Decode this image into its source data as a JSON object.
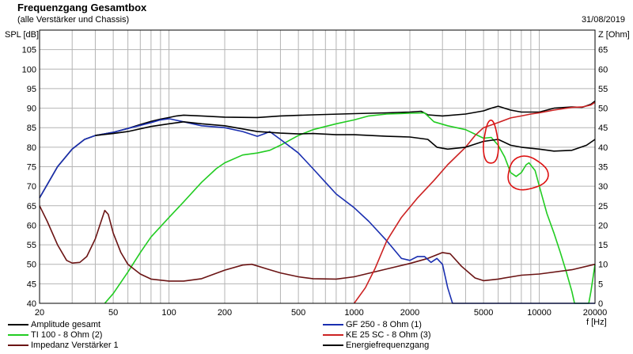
{
  "header": {
    "title": "Frequenzgang Gesamtbox",
    "subtitle": "(alle Verstärker und Chassis)",
    "date": "31/08/2019"
  },
  "chart_data": {
    "type": "line",
    "title": "Frequenzgang Gesamtbox",
    "subtitle": "(alle Verstärker und Chassis)",
    "xlabel": "f [Hz]",
    "ylabel": "SPL [dB]",
    "y2label": "Z [Ohm]",
    "x_scale": "log",
    "xlim": [
      20,
      20000
    ],
    "ylim": [
      40,
      110
    ],
    "y2lim": [
      0,
      70
    ],
    "grid": true,
    "legend_position": "bottom",
    "x_ticks": [
      20,
      50,
      100,
      200,
      500,
      1000,
      2000,
      5000,
      10000,
      20000
    ],
    "x_tick_labels": [
      "20",
      "50",
      "100",
      "200",
      "500",
      "1000",
      "2000",
      "5000",
      "10000",
      "20000"
    ],
    "y_ticks": [
      40,
      45,
      50,
      55,
      60,
      65,
      70,
      75,
      80,
      85,
      90,
      95,
      100,
      105
    ],
    "y_tick_labels": [
      "40",
      "45",
      "50",
      "55",
      "60",
      "65",
      "70",
      "75",
      "80",
      "85",
      "90",
      "95",
      "100",
      "105"
    ],
    "y2_ticks": [
      0,
      5,
      10,
      15,
      20,
      25,
      30,
      35,
      40,
      45,
      50,
      55,
      60,
      65
    ],
    "y2_tick_labels": [
      "0",
      "5",
      "10",
      "15",
      "20",
      "25",
      "30",
      "35",
      "40",
      "45",
      "50",
      "55",
      "60",
      "65"
    ],
    "series": [
      {
        "name": "Amplitude gesamt",
        "color": "#000000",
        "axis": "left",
        "points": [
          [
            20,
            67
          ],
          [
            25,
            75
          ],
          [
            30,
            79.5
          ],
          [
            35,
            82
          ],
          [
            40,
            83
          ],
          [
            50,
            83.8
          ],
          [
            60,
            84.8
          ],
          [
            70,
            85.8
          ],
          [
            80,
            86.6
          ],
          [
            90,
            87.2
          ],
          [
            100,
            87.6
          ],
          [
            110,
            88
          ],
          [
            120,
            88.2
          ],
          [
            150,
            88
          ],
          [
            200,
            87.7
          ],
          [
            300,
            87.6
          ],
          [
            400,
            88
          ],
          [
            600,
            88.3
          ],
          [
            1000,
            88.6
          ],
          [
            1500,
            88.8
          ],
          [
            2000,
            89
          ],
          [
            2300,
            89.2
          ],
          [
            2500,
            88.3
          ],
          [
            3000,
            88
          ],
          [
            4000,
            88.5
          ],
          [
            5000,
            89.3
          ],
          [
            5500,
            90
          ],
          [
            6000,
            90.5
          ],
          [
            7000,
            89.5
          ],
          [
            8000,
            89
          ],
          [
            9000,
            89
          ],
          [
            10000,
            89
          ],
          [
            12000,
            90
          ],
          [
            15000,
            90.3
          ],
          [
            17000,
            90.2
          ],
          [
            19000,
            91
          ],
          [
            20000,
            91.8
          ]
        ]
      },
      {
        "name": "TI 100 - 8 Ohm (2)",
        "color": "#22cc22",
        "axis": "left",
        "points": [
          [
            45,
            40
          ],
          [
            50,
            42.5
          ],
          [
            60,
            48
          ],
          [
            70,
            53
          ],
          [
            80,
            57
          ],
          [
            100,
            62
          ],
          [
            120,
            66
          ],
          [
            150,
            71
          ],
          [
            180,
            74.5
          ],
          [
            200,
            76
          ],
          [
            250,
            78
          ],
          [
            300,
            78.5
          ],
          [
            350,
            79.2
          ],
          [
            400,
            80.5
          ],
          [
            500,
            83
          ],
          [
            600,
            84.5
          ],
          [
            800,
            86
          ],
          [
            1000,
            87
          ],
          [
            1200,
            88
          ],
          [
            1500,
            88.5
          ],
          [
            2000,
            88.7
          ],
          [
            2400,
            88.8
          ],
          [
            2700,
            86.5
          ],
          [
            3200,
            85.5
          ],
          [
            4000,
            84.5
          ],
          [
            5000,
            82.3
          ],
          [
            5500,
            82.5
          ],
          [
            6000,
            80.5
          ],
          [
            6500,
            77.5
          ],
          [
            7000,
            73.5
          ],
          [
            7500,
            72.5
          ],
          [
            8000,
            73.5
          ],
          [
            8500,
            75.5
          ],
          [
            8800,
            76
          ],
          [
            9500,
            74
          ],
          [
            10000,
            70
          ],
          [
            11000,
            63
          ],
          [
            12000,
            58
          ],
          [
            13000,
            53
          ],
          [
            14000,
            48
          ],
          [
            15000,
            43
          ],
          [
            15500,
            40
          ],
          [
            18500,
            40
          ],
          [
            19000,
            43
          ],
          [
            20000,
            50
          ]
        ]
      },
      {
        "name": "Impedanz Verstärker 1",
        "color": "#6b1414",
        "axis": "right",
        "points": [
          [
            20,
            25
          ],
          [
            22,
            21
          ],
          [
            25,
            15
          ],
          [
            28,
            11
          ],
          [
            30,
            10.3
          ],
          [
            33,
            10.5
          ],
          [
            36,
            12
          ],
          [
            40,
            16.5
          ],
          [
            43,
            21
          ],
          [
            45,
            23.8
          ],
          [
            47,
            22.8
          ],
          [
            50,
            18
          ],
          [
            55,
            13
          ],
          [
            60,
            10
          ],
          [
            70,
            7.5
          ],
          [
            80,
            6.2
          ],
          [
            100,
            5.7
          ],
          [
            120,
            5.7
          ],
          [
            150,
            6.3
          ],
          [
            200,
            8.5
          ],
          [
            250,
            9.8
          ],
          [
            280,
            10
          ],
          [
            350,
            8.6
          ],
          [
            400,
            7.8
          ],
          [
            500,
            6.8
          ],
          [
            600,
            6.3
          ],
          [
            800,
            6.2
          ],
          [
            1000,
            6.8
          ],
          [
            1500,
            8.8
          ],
          [
            2000,
            10.2
          ],
          [
            2500,
            11.5
          ],
          [
            3000,
            13
          ],
          [
            3300,
            12.7
          ],
          [
            3800,
            9.5
          ],
          [
            4500,
            6.5
          ],
          [
            5000,
            5.8
          ],
          [
            6000,
            6.2
          ],
          [
            8000,
            7.2
          ],
          [
            10000,
            7.5
          ],
          [
            15000,
            8.6
          ],
          [
            20000,
            10
          ]
        ]
      },
      {
        "name": "GF 250 - 8 Ohm (1)",
        "color": "#1a2fb0",
        "axis": "left",
        "points": [
          [
            20,
            67
          ],
          [
            25,
            75
          ],
          [
            30,
            79.5
          ],
          [
            35,
            82
          ],
          [
            40,
            83
          ],
          [
            50,
            83.8
          ],
          [
            60,
            84.8
          ],
          [
            70,
            85.6
          ],
          [
            80,
            86.3
          ],
          [
            90,
            87
          ],
          [
            100,
            87.3
          ],
          [
            120,
            86.5
          ],
          [
            150,
            85.5
          ],
          [
            200,
            85
          ],
          [
            250,
            84
          ],
          [
            300,
            82.8
          ],
          [
            330,
            83.5
          ],
          [
            350,
            84
          ],
          [
            400,
            82
          ],
          [
            500,
            78.5
          ],
          [
            600,
            74.5
          ],
          [
            700,
            71
          ],
          [
            800,
            68
          ],
          [
            1000,
            64.5
          ],
          [
            1200,
            61
          ],
          [
            1500,
            56
          ],
          [
            1800,
            51.5
          ],
          [
            2000,
            51
          ],
          [
            2200,
            52
          ],
          [
            2400,
            52
          ],
          [
            2600,
            50.5
          ],
          [
            2800,
            51.5
          ],
          [
            3000,
            50
          ],
          [
            3200,
            44
          ],
          [
            3400,
            40
          ],
          [
            20000,
            40
          ]
        ]
      },
      {
        "name": "KE 25 SC - 8 Ohm (3)",
        "color": "#cc2222",
        "axis": "left",
        "points": [
          [
            1000,
            40
          ],
          [
            1150,
            44
          ],
          [
            1300,
            49
          ],
          [
            1500,
            56
          ],
          [
            1800,
            62
          ],
          [
            2200,
            67
          ],
          [
            2700,
            71.5
          ],
          [
            3200,
            75.5
          ],
          [
            4000,
            80
          ],
          [
            4500,
            83
          ],
          [
            5000,
            85
          ],
          [
            6000,
            86.3
          ],
          [
            7000,
            87.5
          ],
          [
            8000,
            88
          ],
          [
            9000,
            88.5
          ],
          [
            10000,
            88.8
          ],
          [
            12000,
            89.5
          ],
          [
            15000,
            90.2
          ],
          [
            17000,
            90.3
          ],
          [
            19000,
            90.8
          ],
          [
            20000,
            91.5
          ]
        ]
      },
      {
        "name": "Energiefrequenzgang",
        "color": "#000000",
        "axis": "left",
        "points": [
          [
            40,
            83
          ],
          [
            50,
            83.5
          ],
          [
            60,
            84
          ],
          [
            80,
            85.3
          ],
          [
            100,
            86
          ],
          [
            120,
            86.5
          ],
          [
            150,
            86
          ],
          [
            200,
            85.5
          ],
          [
            300,
            84
          ],
          [
            400,
            83.6
          ],
          [
            500,
            83.4
          ],
          [
            600,
            83.5
          ],
          [
            800,
            83.2
          ],
          [
            1000,
            83.2
          ],
          [
            1500,
            82.8
          ],
          [
            2000,
            82.6
          ],
          [
            2500,
            82
          ],
          [
            2800,
            80
          ],
          [
            3200,
            79.5
          ],
          [
            4000,
            80
          ],
          [
            5000,
            81.5
          ],
          [
            6000,
            82
          ],
          [
            7000,
            80.5
          ],
          [
            8000,
            80
          ],
          [
            10000,
            79.5
          ],
          [
            12000,
            79
          ],
          [
            15000,
            79.2
          ],
          [
            18000,
            80.5
          ],
          [
            20000,
            82
          ]
        ]
      }
    ],
    "annotations": [
      {
        "type": "freehand-circle",
        "color": "#dd1111",
        "around": [
          [
            5000,
            75.5
          ],
          [
            6000,
            86.5
          ]
        ]
      },
      {
        "type": "freehand-circle",
        "color": "#dd1111",
        "around": [
          [
            6700,
            69
          ],
          [
            11000,
            77.5
          ]
        ]
      }
    ]
  }
}
